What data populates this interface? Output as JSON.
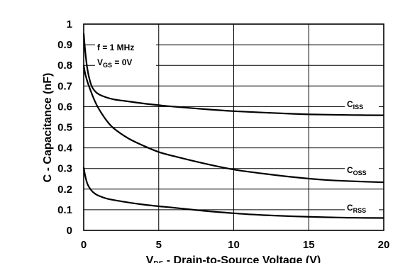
{
  "chart_data": {
    "type": "line",
    "ylabel": "C - Capacitance (nF)",
    "xlabel_main": "V",
    "xlabel_sub": "DS",
    "xlabel_rest": " - Drain-to-Source Voltage (V)",
    "xlim": [
      0,
      20
    ],
    "ylim": [
      0,
      1
    ],
    "x_ticks": [
      0,
      5,
      10,
      15,
      20
    ],
    "y_ticks": [
      0,
      0.1,
      0.2,
      0.3,
      0.4,
      0.5,
      0.6,
      0.7,
      0.8,
      0.9,
      1
    ],
    "x_tick_labels": [
      "0",
      "5",
      "10",
      "15",
      "20"
    ],
    "y_tick_labels": [
      "0",
      "0.1",
      "0.2",
      "0.3",
      "0.4",
      "0.5",
      "0.6",
      "0.7",
      "0.8",
      "0.9",
      "1"
    ],
    "grid": true,
    "annotation": {
      "line1": "f = 1 MHz",
      "line2_main": "V",
      "line2_sub": "GS",
      "line2_rest": " = 0V"
    },
    "series": [
      {
        "name_main": "C",
        "name_sub": "ISS",
        "x": [
          0,
          0.1,
          0.25,
          0.5,
          0.75,
          1,
          1.5,
          2,
          3,
          4,
          5,
          6,
          8,
          10,
          12,
          14,
          16,
          18,
          20
        ],
        "y": [
          0.955,
          0.87,
          0.78,
          0.705,
          0.675,
          0.66,
          0.645,
          0.635,
          0.625,
          0.615,
          0.607,
          0.6,
          0.588,
          0.578,
          0.571,
          0.565,
          0.561,
          0.559,
          0.558
        ]
      },
      {
        "name_main": "C",
        "name_sub": "OSS",
        "x": [
          0,
          0.1,
          0.25,
          0.5,
          0.75,
          1,
          1.5,
          2,
          3,
          4,
          5,
          6,
          8,
          10,
          12,
          14,
          16,
          18,
          20
        ],
        "y": [
          0.8,
          0.76,
          0.72,
          0.67,
          0.625,
          0.59,
          0.535,
          0.495,
          0.445,
          0.41,
          0.38,
          0.36,
          0.325,
          0.295,
          0.275,
          0.258,
          0.245,
          0.238,
          0.233
        ]
      },
      {
        "name_main": "C",
        "name_sub": "RSS",
        "x": [
          0,
          0.1,
          0.25,
          0.5,
          0.75,
          1,
          1.5,
          2,
          3,
          4,
          5,
          6,
          8,
          10,
          12,
          14,
          16,
          18,
          20
        ],
        "y": [
          0.305,
          0.265,
          0.225,
          0.195,
          0.178,
          0.168,
          0.155,
          0.147,
          0.135,
          0.125,
          0.117,
          0.11,
          0.095,
          0.083,
          0.074,
          0.068,
          0.064,
          0.061,
          0.06
        ]
      }
    ]
  }
}
